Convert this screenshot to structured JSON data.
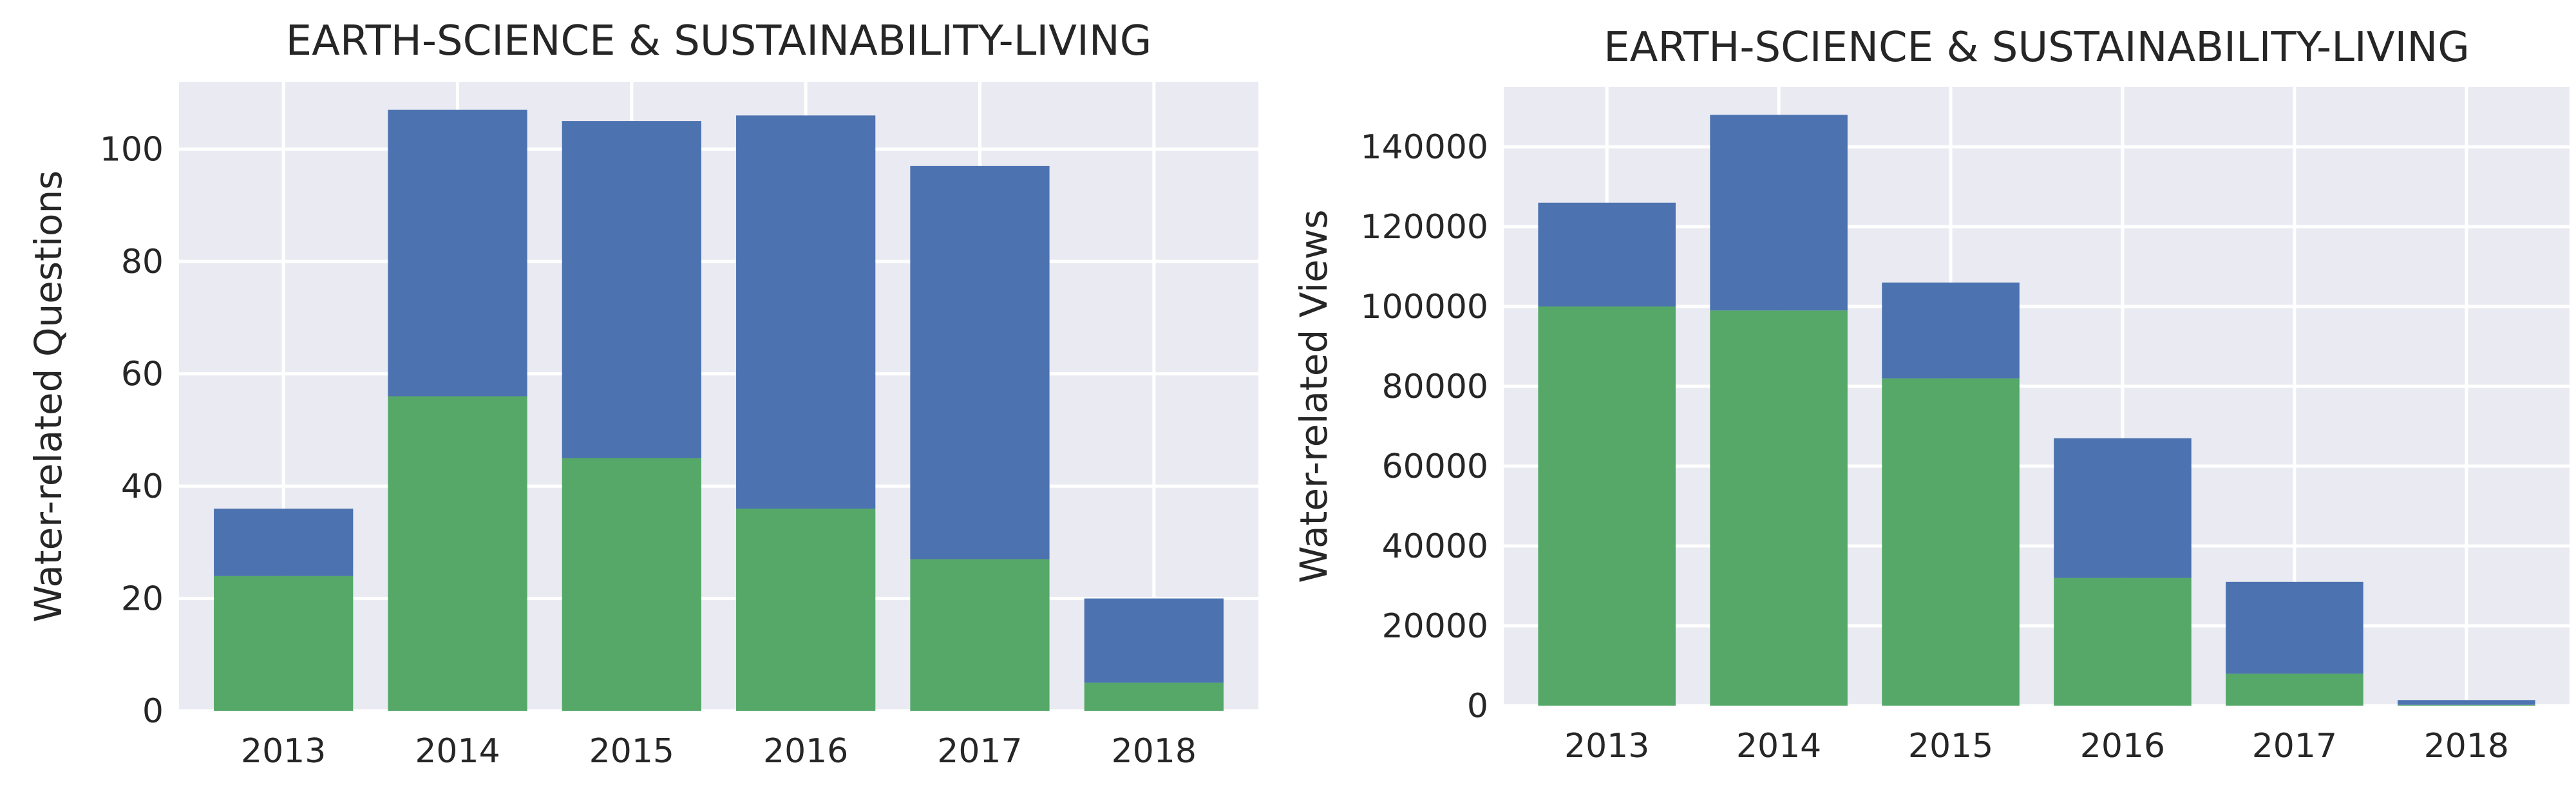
{
  "colors": {
    "background": "#eaeaf2",
    "grid": "#ffffff",
    "text": "#262626",
    "segment_top": "#4c72b0",
    "segment_bottom": "#55a868"
  },
  "chart_data": [
    {
      "type": "bar",
      "stacked": true,
      "title": "EARTH-SCIENCE & SUSTAINABILITY-LIVING",
      "xlabel": "",
      "ylabel": "Water-related Questions",
      "categories": [
        "2013",
        "2014",
        "2015",
        "2016",
        "2017",
        "2018"
      ],
      "ylim": [
        0,
        112
      ],
      "yticks": [
        "0",
        "20",
        "40",
        "60",
        "80",
        "100"
      ],
      "grid": true,
      "series": [
        {
          "color": "#55a868",
          "values": [
            24,
            56,
            45,
            36,
            27,
            5
          ]
        },
        {
          "color": "#4c72b0",
          "values": [
            12,
            51,
            60,
            70,
            70,
            15
          ]
        }
      ]
    },
    {
      "type": "bar",
      "stacked": true,
      "title": "EARTH-SCIENCE & SUSTAINABILITY-LIVING",
      "xlabel": "",
      "ylabel": "Water-related Views",
      "categories": [
        "2013",
        "2014",
        "2015",
        "2016",
        "2017",
        "2018"
      ],
      "ylim": [
        0,
        155000
      ],
      "yticks": [
        "0",
        "20000",
        "40000",
        "60000",
        "80000",
        "100000",
        "120000",
        "140000"
      ],
      "grid": true,
      "series": [
        {
          "color": "#55a868",
          "values": [
            100000,
            99000,
            82000,
            32000,
            8000,
            200
          ]
        },
        {
          "color": "#4c72b0",
          "values": [
            26000,
            49000,
            24000,
            35000,
            23000,
            1200
          ]
        }
      ]
    }
  ]
}
